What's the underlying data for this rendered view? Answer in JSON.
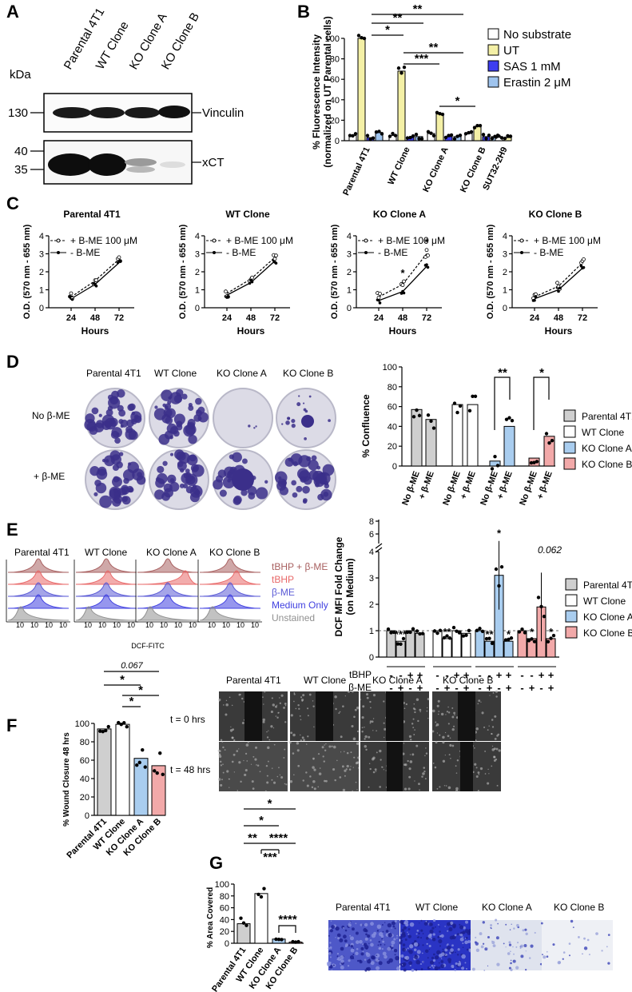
{
  "colors": {
    "ut": "#f4f0a6",
    "sas": "#3d3df0",
    "erastin": "#9fc4ee",
    "grey": "#cfcfcf",
    "blue": "#a9cdef",
    "pink": "#f2a9a9",
    "tbhp_be": "#a86060",
    "tbhp": "#e86868",
    "be": "#5b5bd6",
    "medium": "#4040e0",
    "unstained": "#909090"
  },
  "panelA": {
    "label": "A",
    "kda": "kDa",
    "lanes": [
      "Parental 4T1",
      "WT Clone",
      "KO Clone A",
      "KO Clone B"
    ],
    "markers": [
      "130",
      "40",
      "35"
    ],
    "bands": [
      "Vinculin",
      "xCT"
    ]
  },
  "panelB": {
    "label": "B",
    "ylabel1": "% Fluorescence Intensity",
    "ylabel2": "(normalized on UT Parental cells)",
    "yticks": [
      "0",
      "20",
      "40",
      "60",
      "80",
      "100"
    ],
    "legend": [
      "No substrate",
      "UT",
      "SAS 1 mM",
      "Erastin 2 μM"
    ],
    "sig": [
      "**",
      "**",
      "*",
      "**",
      "***",
      "*"
    ]
  },
  "panelC": {
    "label": "C",
    "ylabel": "O.D. (570 nm - 655 nm)",
    "xlabel": "Hours",
    "xticks": [
      "24",
      "48",
      "72"
    ],
    "yticks": [
      "0",
      "1",
      "2",
      "3",
      "4"
    ],
    "legend_be": "+ B-ME 100 μM",
    "legend_nobe": "- B-ME",
    "star": "*"
  },
  "panelD": {
    "label": "D",
    "rows": [
      "No β-ME",
      "+ β-ME"
    ],
    "cols": [
      "Parental 4T1",
      "WT Clone",
      "KO Clone A",
      "KO Clone B"
    ],
    "ylabel": "% Confluence",
    "yticks": [
      "0",
      "20",
      "40",
      "60",
      "80",
      "100"
    ],
    "xcats": [
      "No β-ME",
      "+ β-ME"
    ],
    "legend": [
      "Parental 4T1",
      "WT Clone",
      "KO Clone A",
      "KO Clone B"
    ],
    "sig": [
      "**",
      "*"
    ]
  },
  "panelE": {
    "label": "E",
    "cols": [
      "Parental 4T1",
      "WT Clone",
      "KO Clone A",
      "KO Clone B"
    ],
    "legend": [
      "tBHP + β-ME",
      "tBHP",
      "β-ME",
      "Medium Only",
      "Unstained"
    ],
    "xaxis": "DCF-FITC",
    "ylabel1": "DCF MFI Fold Change",
    "ylabel2": "(on Medium)",
    "yticks": [
      "0",
      "1",
      "2",
      "3",
      "4",
      "6",
      "8"
    ],
    "row_tbhp": "tBHP",
    "row_be": "β-ME",
    "signs_tbhp": [
      "-",
      "-",
      "+",
      "+"
    ],
    "signs_be": [
      "-",
      "+",
      "-",
      "+"
    ],
    "pval": "0.062",
    "legend2": [
      "Parental 4T1",
      "WT Clone",
      "KO Clone A",
      "KO Clone B"
    ]
  },
  "panelF": {
    "label": "F",
    "ylabel": "% Wound Closure 48 hrs",
    "yticks": [
      "0",
      "20",
      "40",
      "60",
      "80",
      "100"
    ],
    "xcats": [
      "Parental 4T1",
      "WT Clone",
      "KO Clone A",
      "KO Clone B"
    ],
    "pval": "0.067",
    "cols": [
      "Parental 4T1",
      "WT Clone",
      "KO Clone A",
      "KO Clone B"
    ],
    "rows": [
      "t = 0 hrs",
      "t = 48 hrs"
    ]
  },
  "panelG": {
    "label": "G",
    "ylabel": "% Area Covered",
    "yticks": [
      "0",
      "20",
      "40",
      "60",
      "80",
      "100"
    ],
    "xcats": [
      "Parental 4T1",
      "WT Clone",
      "KO Clone A",
      "KO Clone B"
    ],
    "sig": [
      "*",
      "*",
      "**",
      "***",
      "****",
      "****"
    ],
    "cols": [
      "Parental 4T1",
      "WT Clone",
      "KO Clone A",
      "KO Clone B"
    ]
  },
  "chart_data": [
    {
      "type": "bar",
      "panel": "B",
      "ylabel": "% Fluorescence Intensity (normalized on UT Parental cells)",
      "categories": [
        "Parental 4T1",
        "WT Clone",
        "KO Clone A",
        "KO Clone B",
        "SUT32-2H9"
      ],
      "ylim": [
        0,
        100
      ],
      "series": [
        {
          "name": "No substrate",
          "values": [
            5,
            5,
            7,
            7,
            4
          ]
        },
        {
          "name": "UT",
          "values": [
            100,
            68,
            26,
            14,
            3
          ]
        },
        {
          "name": "SAS 1 mM",
          "values": [
            3,
            3,
            4,
            4,
            null
          ]
        },
        {
          "name": "Erastin 2 μM",
          "values": [
            8,
            4,
            4,
            4,
            null
          ]
        }
      ]
    },
    {
      "type": "line",
      "panel": "C",
      "title": "Parental 4T1",
      "xlabel": "Hours",
      "ylabel": "O.D. (570 nm - 655 nm)",
      "x": [
        24,
        48,
        72
      ],
      "ylim": [
        0,
        4
      ],
      "series": [
        {
          "name": "+ B-ME 100 μM",
          "values": [
            0.6,
            1.5,
            2.7
          ]
        },
        {
          "name": "- B-ME",
          "values": [
            0.5,
            1.3,
            2.5
          ]
        }
      ]
    },
    {
      "type": "line",
      "panel": "C",
      "title": "WT Clone",
      "xlabel": "Hours",
      "ylabel": "O.D. (570 nm - 655 nm)",
      "x": [
        24,
        48,
        72
      ],
      "ylim": [
        0,
        4
      ],
      "series": [
        {
          "name": "+ B-ME 100 μM",
          "values": [
            0.8,
            1.6,
            2.8
          ]
        },
        {
          "name": "- B-ME",
          "values": [
            0.7,
            1.4,
            2.6
          ]
        }
      ]
    },
    {
      "type": "line",
      "panel": "C",
      "title": "KO Clone A",
      "xlabel": "Hours",
      "ylabel": "O.D. (570 nm - 655 nm)",
      "x": [
        24,
        48,
        72
      ],
      "ylim": [
        0,
        4
      ],
      "series": [
        {
          "name": "+ B-ME 100 μM",
          "values": [
            0.6,
            1.3,
            3.0
          ]
        },
        {
          "name": "- B-ME",
          "values": [
            0.4,
            0.9,
            2.3
          ]
        }
      ]
    },
    {
      "type": "line",
      "panel": "C",
      "title": "KO Clone B",
      "xlabel": "Hours",
      "ylabel": "O.D. (570 nm - 655 nm)",
      "x": [
        24,
        48,
        72
      ],
      "ylim": [
        0,
        4
      ],
      "series": [
        {
          "name": "+ B-ME 100 μM",
          "values": [
            0.6,
            1.2,
            2.5
          ]
        },
        {
          "name": "- B-ME",
          "values": [
            0.5,
            1.0,
            2.2
          ]
        }
      ]
    },
    {
      "type": "bar",
      "panel": "D",
      "ylabel": "% Confluence",
      "ylim": [
        0,
        100
      ],
      "categories": [
        "Parental 4T1 No β-ME",
        "Parental 4T1 + β-ME",
        "WT Clone No β-ME",
        "WT Clone + β-ME",
        "KO Clone A No β-ME",
        "KO Clone A + β-ME",
        "KO Clone B No β-ME",
        "KO Clone B + β-ME"
      ],
      "values": [
        57,
        47,
        62,
        62,
        5,
        40,
        8,
        30
      ]
    },
    {
      "type": "bar",
      "panel": "E",
      "ylabel": "DCF MFI Fold Change (on Medium)",
      "categories": [
        "Parental 4T1",
        "WT Clone",
        "KO Clone A",
        "KO Clone B"
      ],
      "series": [
        {
          "name": "tBHP - β-ME -",
          "values": [
            1.0,
            1.0,
            1.0,
            1.0
          ]
        },
        {
          "name": "tBHP - β-ME +",
          "values": [
            0.6,
            0.7,
            0.6,
            0.7
          ]
        },
        {
          "name": "tBHP + β-ME -",
          "values": [
            1.0,
            1.0,
            3.1,
            1.9
          ]
        },
        {
          "name": "tBHP + β-ME +",
          "values": [
            0.9,
            0.9,
            0.6,
            0.7
          ]
        }
      ]
    },
    {
      "type": "bar",
      "panel": "F",
      "ylabel": "% Wound Closure 48 hrs",
      "ylim": [
        0,
        100
      ],
      "categories": [
        "Parental 4T1",
        "WT Clone",
        "KO Clone A",
        "KO Clone B"
      ],
      "values": [
        94,
        99,
        62,
        54
      ]
    },
    {
      "type": "bar",
      "panel": "G",
      "ylabel": "% Area Covered",
      "ylim": [
        0,
        100
      ],
      "categories": [
        "Parental 4T1",
        "WT Clone",
        "KO Clone A",
        "KO Clone B"
      ],
      "values": [
        33,
        84,
        7,
        2
      ]
    }
  ]
}
